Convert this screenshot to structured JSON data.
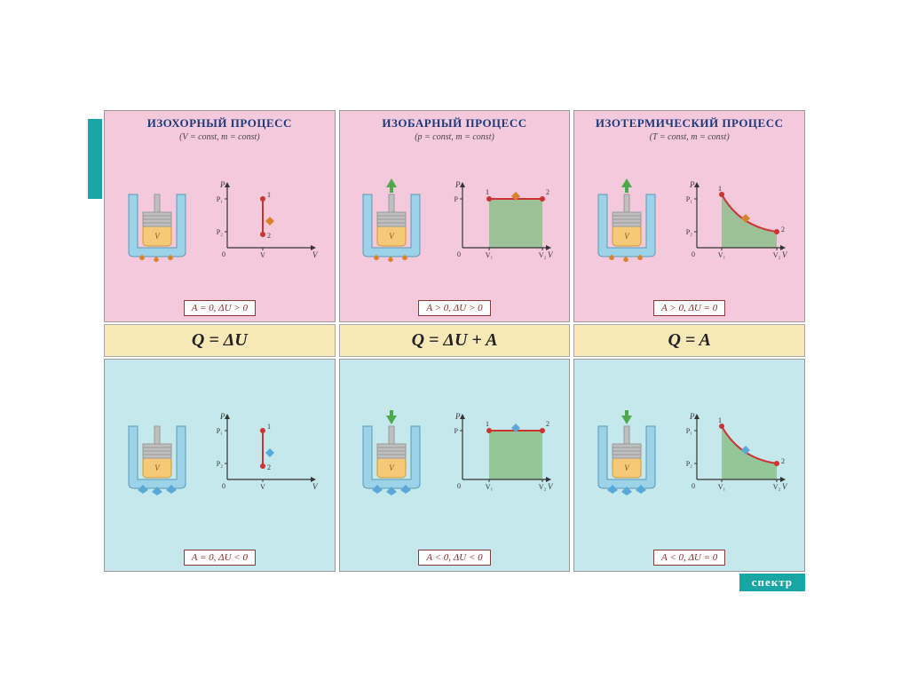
{
  "colors": {
    "panel_top_bg": "#f5c9dc",
    "panel_bot_bg": "#c5e8ec",
    "equation_bg": "#f7e8b8",
    "title_color": "#1a3a7a",
    "cond_border": "#8a3a3a",
    "cond_text": "#8a2a2a",
    "piston_water": "#9cd3e8",
    "piston_body": "#bfbfbf",
    "piston_body_dark": "#999",
    "piston_gas": "#f5c978",
    "flame": "#d9822b",
    "ice": "#5aa8d8",
    "chart_fill": "#8cbf8c",
    "chart_line": "#cc3333",
    "axis": "#333",
    "arrow_green": "#4ea84e",
    "brand": "#1aa5a5"
  },
  "logo": "спектр",
  "columns": [
    {
      "title": "ИЗОХОРНЫЙ ПРОЦЕСС",
      "subtitle": "(V = const,  m = const)",
      "equation": "Q = ΔU",
      "top": {
        "chart_type": "isochoric",
        "y_labels": [
          "P₁",
          "P₂"
        ],
        "x_labels": [
          "V"
        ],
        "point1": [
          40,
          25
        ],
        "point2": [
          40,
          60
        ],
        "fill": false,
        "condition": "A = 0,  ΔU > 0",
        "heat": "in",
        "piston_arrow": "none"
      },
      "bot": {
        "chart_type": "isochoric",
        "y_labels": [
          "P₁",
          "P₂"
        ],
        "x_labels": [
          "V"
        ],
        "point1": [
          40,
          25
        ],
        "point2": [
          40,
          60
        ],
        "fill": false,
        "condition": "A = 0,  ΔU < 0",
        "heat": "out",
        "piston_arrow": "none"
      }
    },
    {
      "title": "ИЗОБАРНЫЙ ПРОЦЕСС",
      "subtitle": "(p = const,  m = const)",
      "equation": "Q = ΔU + A",
      "top": {
        "chart_type": "isobaric",
        "y_labels": [
          "P"
        ],
        "x_labels": [
          "V₁",
          "V₂"
        ],
        "point1": [
          30,
          25
        ],
        "point2": [
          90,
          25
        ],
        "fill": true,
        "condition": "A > 0,  ΔU > 0",
        "heat": "in",
        "piston_arrow": "up"
      },
      "bot": {
        "chart_type": "isobaric",
        "y_labels": [
          "P"
        ],
        "x_labels": [
          "V₁",
          "V₂"
        ],
        "point1": [
          30,
          25
        ],
        "point2": [
          90,
          25
        ],
        "fill": true,
        "condition": "A < 0,  ΔU < 0",
        "heat": "out",
        "piston_arrow": "down"
      }
    },
    {
      "title": "ИЗОТЕРМИЧЕСКИЙ ПРОЦЕСС",
      "subtitle": "(T = const,  m = const)",
      "equation": "Q = A",
      "top": {
        "chart_type": "isothermal",
        "y_labels": [
          "P₁",
          "P₂"
        ],
        "x_labels": [
          "V₁",
          "V₂"
        ],
        "point1": [
          28,
          20
        ],
        "point2": [
          90,
          58
        ],
        "fill": true,
        "condition": "A > 0,  ΔU = 0",
        "heat": "in",
        "piston_arrow": "up"
      },
      "bot": {
        "chart_type": "isothermal",
        "y_labels": [
          "P₁",
          "P₂"
        ],
        "x_labels": [
          "V₁",
          "V₂"
        ],
        "point1": [
          28,
          20
        ],
        "point2": [
          90,
          58
        ],
        "fill": true,
        "condition": "A < 0,  ΔU = 0",
        "heat": "out",
        "piston_arrow": "down"
      }
    }
  ]
}
